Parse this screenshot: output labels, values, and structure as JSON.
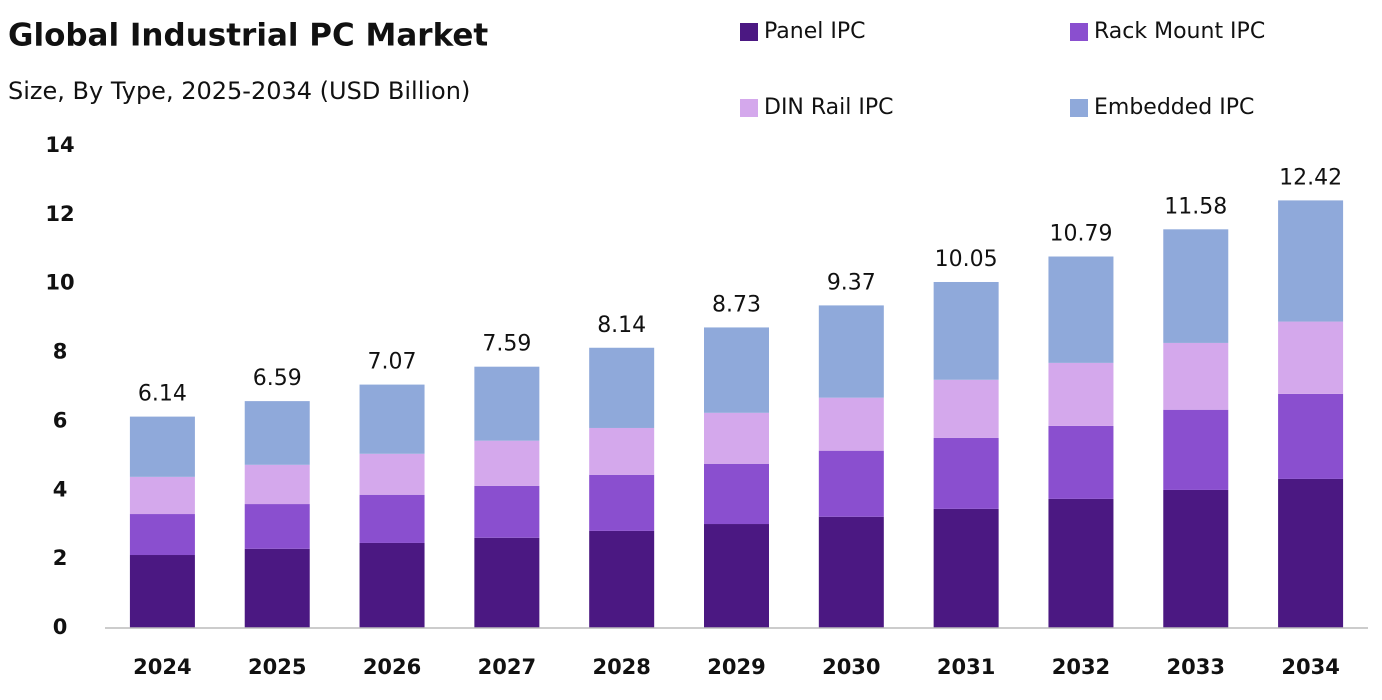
{
  "chart_data": {
    "type": "stacked_bar",
    "title": "Global Industrial PC Market",
    "subtitle": "Size, By Type, 2025-2034 (USD Billion)",
    "categories": [
      "2024",
      "2025",
      "2026",
      "2027",
      "2028",
      "2029",
      "2030",
      "2031",
      "2032",
      "2033",
      "2034"
    ],
    "series": [
      {
        "name": "Panel IPC",
        "color": "#4b1882",
        "values": [
          2.12,
          2.3,
          2.47,
          2.62,
          2.82,
          3.02,
          3.23,
          3.46,
          3.75,
          4.01,
          4.33
        ]
      },
      {
        "name": "Rack Mount IPC",
        "color": "#8a4fcf",
        "values": [
          1.19,
          1.3,
          1.4,
          1.51,
          1.63,
          1.75,
          1.92,
          2.06,
          2.12,
          2.33,
          2.47
        ]
      },
      {
        "name": "DIN Rail IPC",
        "color": "#d4a8ec",
        "values": [
          1.08,
          1.14,
          1.19,
          1.31,
          1.36,
          1.48,
          1.54,
          1.69,
          1.83,
          1.94,
          2.1
        ]
      },
      {
        "name": "Embedded IPC",
        "color": "#8fa9da",
        "values": [
          1.75,
          1.85,
          2.01,
          2.15,
          2.33,
          2.48,
          2.68,
          2.84,
          3.09,
          3.3,
          3.52
        ]
      }
    ],
    "totals": [
      6.14,
      6.59,
      7.07,
      7.59,
      8.14,
      8.73,
      9.37,
      10.05,
      10.79,
      11.58,
      12.42
    ],
    "ylim": [
      0,
      14
    ],
    "yticks": [
      0,
      2,
      4,
      6,
      8,
      10,
      12,
      14
    ],
    "grid": false
  }
}
